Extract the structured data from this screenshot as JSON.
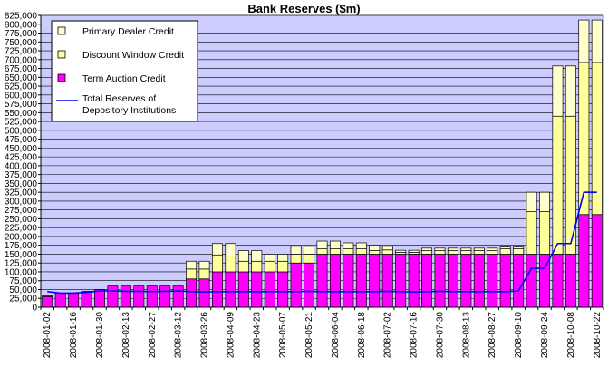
{
  "chart_data": {
    "type": "bar",
    "title": "Bank Reserves ($m)",
    "xlabel": "",
    "ylabel": "",
    "ylim": [
      0,
      825000
    ],
    "y_ticks": [
      0,
      25000,
      50000,
      75000,
      100000,
      125000,
      150000,
      175000,
      200000,
      225000,
      250000,
      275000,
      300000,
      325000,
      350000,
      375000,
      400000,
      425000,
      450000,
      475000,
      500000,
      525000,
      550000,
      575000,
      600000,
      625000,
      650000,
      675000,
      700000,
      725000,
      750000,
      775000,
      800000,
      825000
    ],
    "y_tick_labels": [
      "0",
      "25,000",
      "50,000",
      "75,000",
      "100,000",
      "125,000",
      "150,000",
      "175,000",
      "200,000",
      "225,000",
      "250,000",
      "275,000",
      "300,000",
      "325,000",
      "350,000",
      "375,000",
      "400,000",
      "425,000",
      "450,000",
      "475,000",
      "500,000",
      "525,000",
      "550,000",
      "575,000",
      "600,000",
      "625,000",
      "650,000",
      "675,000",
      "700,000",
      "725,000",
      "750,000",
      "775,000",
      "800,000",
      "825,000"
    ],
    "categories": [
      "2008-01-02",
      "2008-01-09",
      "2008-01-16",
      "2008-01-23",
      "2008-01-30",
      "2008-02-06",
      "2008-02-13",
      "2008-02-20",
      "2008-02-27",
      "2008-03-05",
      "2008-03-12",
      "2008-03-19",
      "2008-03-26",
      "2008-04-02",
      "2008-04-09",
      "2008-04-16",
      "2008-04-23",
      "2008-04-30",
      "2008-05-07",
      "2008-05-14",
      "2008-05-21",
      "2008-05-28",
      "2008-06-04",
      "2008-06-11",
      "2008-06-18",
      "2008-06-25",
      "2008-07-02",
      "2008-07-09",
      "2008-07-16",
      "2008-07-23",
      "2008-07-30",
      "2008-08-06",
      "2008-08-13",
      "2008-08-20",
      "2008-08-27",
      "2008-09-03",
      "2008-09-10",
      "2008-09-17",
      "2008-09-24",
      "2008-10-01",
      "2008-10-08",
      "2008-10-15",
      "2008-10-22"
    ],
    "x_tick_labels": [
      "2008-01-02",
      "2008-01-16",
      "2008-01-30",
      "2008-02-13",
      "2008-02-27",
      "2008-03-12",
      "2008-03-26",
      "2008-04-09",
      "2008-04-23",
      "2008-05-07",
      "2008-05-21",
      "2008-06-04",
      "2008-06-18",
      "2008-07-02",
      "2008-07-16",
      "2008-07-30",
      "2008-08-13",
      "2008-08-27",
      "2008-09-10",
      "2008-09-24",
      "2008-10-08",
      "2008-10-22"
    ],
    "series": [
      {
        "name": "Term Auction Credit",
        "kind": "bar",
        "color": "#ff00ff",
        "values": [
          30000,
          40000,
          40000,
          45000,
          50000,
          60000,
          60000,
          60000,
          60000,
          60000,
          60000,
          80000,
          80000,
          100000,
          100000,
          100000,
          100000,
          100000,
          100000,
          125000,
          125000,
          150000,
          150000,
          150000,
          150000,
          150000,
          150000,
          150000,
          150000,
          150000,
          150000,
          150000,
          150000,
          150000,
          150000,
          150000,
          150000,
          150000,
          150000,
          150000,
          150000,
          262000,
          262000
        ]
      },
      {
        "name": "Discount Window Credit",
        "kind": "bar",
        "color": "#ffff99",
        "values": [
          2000,
          0,
          0,
          0,
          0,
          0,
          0,
          0,
          0,
          0,
          0,
          28000,
          28000,
          48000,
          45000,
          30000,
          30000,
          30000,
          30000,
          25000,
          25000,
          15000,
          15000,
          15000,
          15000,
          10000,
          12000,
          5000,
          5000,
          10000,
          10000,
          10000,
          10000,
          10000,
          10000,
          15000,
          15000,
          120000,
          120000,
          390000,
          390000,
          430000,
          430000
        ]
      },
      {
        "name": "Primary Dealer Credit",
        "kind": "bar",
        "color": "#ffffcc",
        "values": [
          0,
          0,
          0,
          0,
          0,
          0,
          0,
          0,
          0,
          0,
          0,
          22000,
          22000,
          32000,
          35000,
          30000,
          30000,
          20000,
          20000,
          22000,
          22000,
          22000,
          22000,
          17000,
          17000,
          15000,
          10000,
          6000,
          6000,
          7000,
          7000,
          7000,
          7000,
          7000,
          7000,
          5000,
          5000,
          55000,
          55000,
          142000,
          142000,
          120000,
          120000
        ]
      },
      {
        "name": "Total Reserves of Depository Institutions",
        "kind": "line",
        "color": "#0000ff",
        "values": [
          44000,
          40000,
          40000,
          42000,
          46000,
          46000,
          45000,
          45000,
          44000,
          45000,
          46000,
          44000,
          43000,
          44000,
          44000,
          44000,
          44000,
          44000,
          44000,
          44000,
          45000,
          44000,
          44000,
          44000,
          44000,
          44000,
          45000,
          44000,
          43000,
          44000,
          45000,
          44000,
          44000,
          44000,
          44000,
          44000,
          46000,
          110000,
          110000,
          180000,
          180000,
          325000,
          325000
        ]
      }
    ],
    "legend": [
      {
        "label": "Primary Dealer Credit"
      },
      {
        "label": "Discount Window Credit"
      },
      {
        "label": "Term Auction Credit"
      },
      {
        "label": "Total Reserves of Depository Institutions"
      }
    ],
    "legend_position": "top-left",
    "grid": true,
    "plot_background": "#ccccff"
  }
}
